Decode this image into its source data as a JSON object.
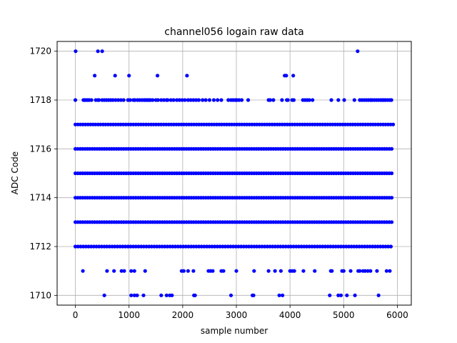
{
  "chart_data": {
    "type": "scatter",
    "title": "channel056 logain raw data",
    "xlabel": "sample number",
    "ylabel": "ADC Code",
    "xlim": [
      -340,
      6260
    ],
    "ylim": [
      1709.6,
      1720.4
    ],
    "xticks": [
      0,
      1000,
      2000,
      3000,
      4000,
      5000,
      6000
    ],
    "yticks": [
      1710,
      1712,
      1714,
      1716,
      1718,
      1720
    ],
    "grid": true,
    "marker_color": "#0000ff",
    "n_samples": 5924,
    "series": [
      {
        "levels": [
          {
            "y": 1720,
            "x": [
              5,
              420,
              500,
              5260
            ]
          },
          {
            "y": 1719,
            "x": [
              360,
              740,
              1000,
              1530,
              2080,
              3900,
              3930,
              4060
            ]
          },
          {
            "y": 1718,
            "x": [
              0,
              150,
              170,
              200,
              230,
              260,
              300,
              380,
              420,
              440,
              500,
              540,
              580,
              620,
              660,
              700,
              750,
              800,
              850,
              900,
              980,
              1020,
              1080,
              1110,
              1160,
              1200,
              1240,
              1280,
              1310,
              1340,
              1370,
              1400,
              1440,
              1500,
              1540,
              1600,
              1650,
              1700,
              1720,
              1780,
              1830,
              1890,
              1940,
              1990,
              2040,
              2100,
              2150,
              2200,
              2250,
              2300,
              2370,
              2430,
              2500,
              2580,
              2650,
              2720,
              2850,
              2900,
              2940,
              2980,
              3010,
              3050,
              3100,
              3220,
              3600,
              3630,
              3690,
              3850,
              3940,
              3960,
              4040,
              4070,
              4240,
              4280,
              4320,
              4360,
              4420,
              4770,
              4900,
              5010,
              5200,
              5300,
              5340,
              5380,
              5420,
              5460,
              5500,
              5530,
              5570,
              5610,
              5650,
              5690,
              5720,
              5750,
              5780,
              5820,
              5860,
              5890
            ]
          },
          {
            "y": 1717,
            "x": []
          },
          {
            "y": 1716,
            "x": []
          },
          {
            "y": 1715,
            "x": []
          },
          {
            "y": 1714,
            "x": []
          },
          {
            "y": 1713,
            "x": []
          },
          {
            "y": 1712,
            "x": []
          },
          {
            "y": 1711,
            "x": [
              140,
              590,
              720,
              860,
              910,
              1040,
              1100,
              1300,
              1980,
              2020,
              2100,
              2200,
              2480,
              2520,
              2560,
              2720,
              2760,
              3000,
              3330,
              3600,
              3720,
              3830,
              4000,
              4040,
              4080,
              4250,
              4460,
              4760,
              4780,
              4970,
              5000,
              5130,
              5270,
              5300,
              5360,
              5400,
              5450,
              5500,
              5620,
              5800,
              5860
            ]
          },
          {
            "y": 1710,
            "x": [
              540,
              1040,
              1100,
              1150,
              1270,
              1600,
              1700,
              1760,
              1800,
              2210,
              2230,
              2900,
              3300,
              3320,
              3800,
              3860,
              4740,
              4900,
              4950,
              5060,
              5210,
              5650
            ]
          }
        ]
      }
    ]
  }
}
